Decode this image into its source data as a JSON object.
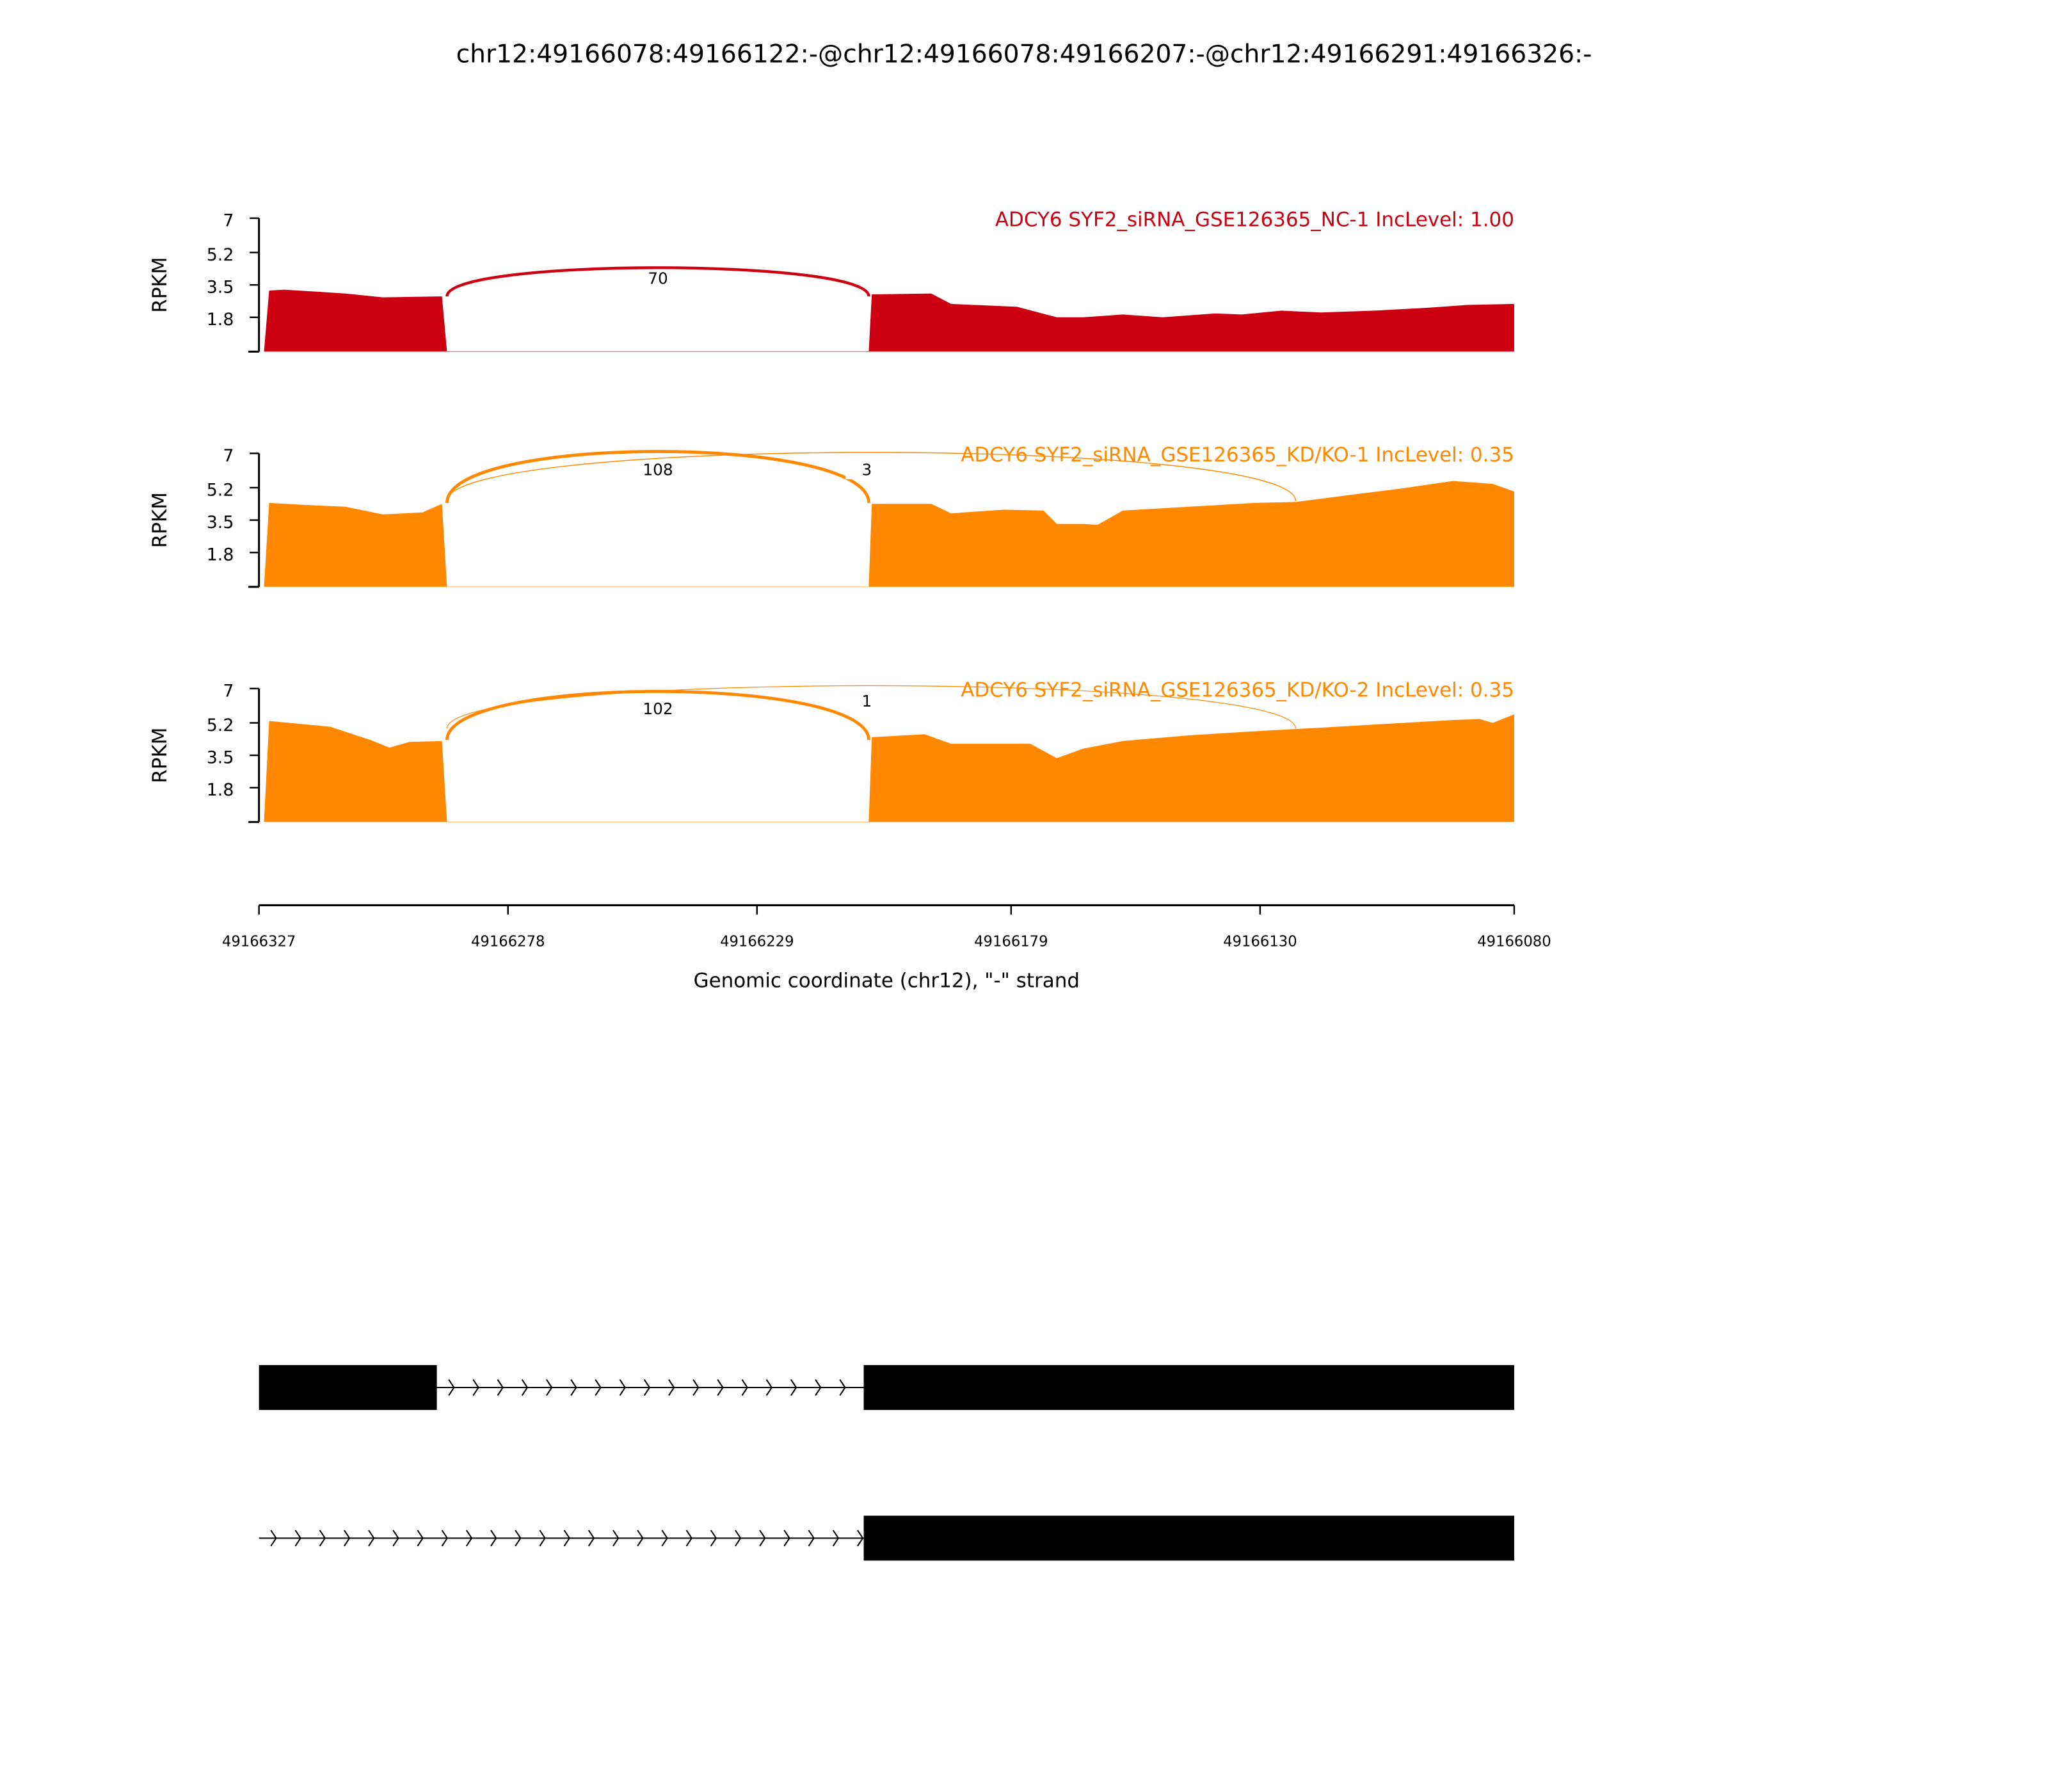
{
  "chart_data": {
    "type": "area",
    "title": "chr12:49166078:49166122:-@chr12:49166078:49166207:-@chr12:49166291:49166326:-",
    "xlabel": "Genomic coordinate (chr12), \"-\" strand",
    "xlim": [
      49166327,
      49166080
    ],
    "xticks": [
      "49166327",
      "49166278",
      "49166229",
      "49166179",
      "49166130",
      "49166080"
    ],
    "xtick_values": [
      49166327,
      49166278,
      49166229,
      49166179,
      49166130,
      49166080
    ],
    "ylabel": "RPKM",
    "ylim": [
      0,
      7
    ],
    "yticks": [
      "7",
      "5.2",
      "3.5",
      "1.8"
    ],
    "ytick_values": [
      7,
      5.2,
      3.5,
      1.8
    ],
    "panels": [
      {
        "title": "ADCY6 SYF2_siRNA_GSE126365_NC-1 IncLevel: 1.00",
        "color": "#CC0011",
        "segments": [
          [
            [
              49166326,
              0
            ],
            [
              49166325,
              3.2
            ],
            [
              49166322,
              3.25
            ],
            [
              49166310,
              3.05
            ],
            [
              49166302.6,
              2.85
            ],
            [
              49166291,
              2.9
            ],
            [
              49166290,
              0
            ]
          ],
          [
            [
              49166207,
              0
            ],
            [
              49166206.4,
              3.0
            ],
            [
              49166194.7,
              3.05
            ],
            [
              49166190.8,
              2.5
            ],
            [
              49166177.8,
              2.35
            ],
            [
              49166170,
              1.8
            ],
            [
              49166164.8,
              1.8
            ],
            [
              49166157,
              1.95
            ],
            [
              49166149.2,
              1.8
            ],
            [
              49166138.8,
              2.0
            ],
            [
              49166133.6,
              1.95
            ],
            [
              49166125.8,
              2.15
            ],
            [
              49166118,
              2.05
            ],
            [
              49166107.6,
              2.15
            ],
            [
              49166097,
              2.3
            ],
            [
              49166089.4,
              2.45
            ],
            [
              49166080,
              2.5
            ],
            [
              49166080,
              0
            ]
          ]
        ],
        "junctions": [
          {
            "start": 49166290,
            "end": 49166207,
            "count": "70",
            "peak": 3.9
          }
        ]
      },
      {
        "title": "ADCY6 SYF2_siRNA_GSE126365_KD/KO-1 IncLevel: 0.35",
        "color": "#FF8800",
        "segments": [
          [
            [
              49166326,
              0
            ],
            [
              49166325,
              4.4
            ],
            [
              49166318.2,
              4.3
            ],
            [
              49166310,
              4.2
            ],
            [
              49166302.6,
              3.8
            ],
            [
              49166294.8,
              3.9
            ],
            [
              49166291,
              4.35
            ],
            [
              49166290,
              0
            ]
          ],
          [
            [
              49166207,
              0
            ],
            [
              49166206.4,
              4.35
            ],
            [
              49166194.7,
              4.35
            ],
            [
              49166190.8,
              3.85
            ],
            [
              49166180.4,
              4.05
            ],
            [
              49166172.6,
              4.0
            ],
            [
              49166170,
              3.3
            ],
            [
              49166164.8,
              3.3
            ],
            [
              49166162,
              3.25
            ],
            [
              49166157,
              4.0
            ],
            [
              49166144,
              4.2
            ],
            [
              49166131,
              4.4
            ],
            [
              49166123,
              4.45
            ],
            [
              49166112.8,
              4.8
            ],
            [
              49166102.4,
              5.15
            ],
            [
              49166092,
              5.55
            ],
            [
              49166084.2,
              5.4
            ],
            [
              49166080,
              5.0
            ],
            [
              49166080,
              0
            ]
          ]
        ],
        "junctions": [
          {
            "start": 49166290,
            "end": 49166207,
            "count": "108",
            "peak": 6.2
          },
          {
            "start": 49166290,
            "end": 49166123,
            "count": "3",
            "peak": 6.2
          }
        ]
      },
      {
        "title": "ADCY6 SYF2_siRNA_GSE126365_KD/KO-2 IncLevel: 0.35",
        "color": "#FF8800",
        "segments": [
          [
            [
              49166326,
              0
            ],
            [
              49166325,
              5.3
            ],
            [
              49166313,
              5.0
            ],
            [
              49166305,
              4.3
            ],
            [
              49166301.3,
              3.9
            ],
            [
              49166297.4,
              4.2
            ],
            [
              49166291,
              4.25
            ],
            [
              49166290,
              0
            ]
          ],
          [
            [
              49166207,
              0
            ],
            [
              49166206.4,
              4.45
            ],
            [
              49166196,
              4.6
            ],
            [
              49166190.8,
              4.1
            ],
            [
              49166175.2,
              4.1
            ],
            [
              49166170,
              3.35
            ],
            [
              49166164.8,
              3.85
            ],
            [
              49166157,
              4.25
            ],
            [
              49166144,
              4.55
            ],
            [
              49166128.4,
              4.8
            ],
            [
              49166118,
              4.95
            ],
            [
              49166105,
              5.15
            ],
            [
              49166092,
              5.35
            ],
            [
              49166086.8,
              5.4
            ],
            [
              49166084.2,
              5.2
            ],
            [
              49166080,
              5.65
            ],
            [
              49166080,
              0
            ]
          ]
        ],
        "junctions": [
          {
            "start": 49166290,
            "end": 49166207,
            "count": "102",
            "peak": 6.0
          },
          {
            "start": 49166290,
            "end": 49166123,
            "count": "1",
            "peak": 6.4
          }
        ]
      }
    ],
    "transcripts": [
      {
        "exons": [
          [
            49166327,
            49166292
          ],
          [
            49166208,
            49166080
          ]
        ],
        "intron": [
          49166292,
          49166208
        ]
      },
      {
        "exons": [
          [
            49166208,
            49166080
          ]
        ],
        "intron": [
          49166327,
          49166208
        ]
      }
    ]
  }
}
